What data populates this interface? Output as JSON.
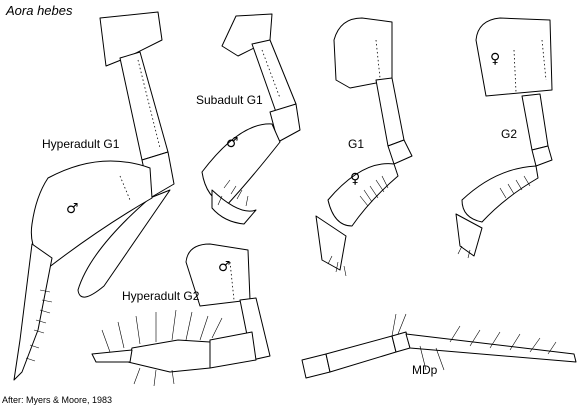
{
  "figure": {
    "title": "Aora hebes",
    "credit": "After: Myers & Moore, 1983",
    "labels": {
      "hyperadult_g1": "Hyperadult G1",
      "subadult_g1": "Subadult G1",
      "g1": "G1",
      "g2": "G2",
      "hyperadult_g2": "Hyperadult G2",
      "mdp": "MDp"
    },
    "symbols": {
      "male": "♂",
      "female": "♀"
    }
  }
}
